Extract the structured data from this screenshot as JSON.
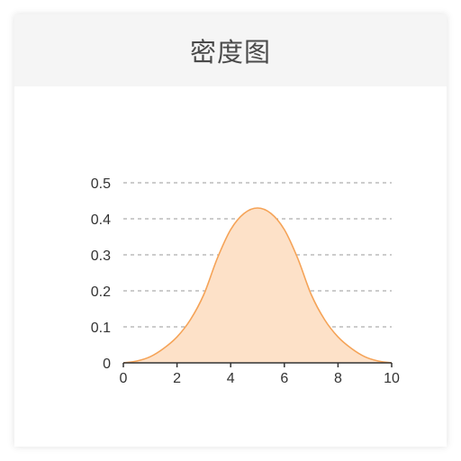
{
  "card": {
    "title": "密度图"
  },
  "chart_data": {
    "type": "area",
    "title": "",
    "xlabel": "",
    "ylabel": "",
    "xlim": [
      0,
      10
    ],
    "ylim": [
      0,
      0.5
    ],
    "grid": "horizontal-dashed",
    "x_ticks": [
      0,
      2,
      4,
      6,
      8,
      10
    ],
    "y_ticks": [
      0,
      0.1,
      0.2,
      0.3,
      0.4,
      0.5
    ],
    "y_tick_labels": [
      "0",
      "0.1",
      "0.2",
      "0.3",
      "0.4",
      "0.5"
    ],
    "series": [
      {
        "x": [
          0,
          0.5,
          1,
          1.5,
          2,
          2.5,
          3,
          3.5,
          4,
          4.5,
          5,
          5.5,
          6,
          6.5,
          7,
          7.5,
          8,
          8.5,
          9,
          9.5,
          10
        ],
        "values": [
          0.0,
          0.005,
          0.017,
          0.04,
          0.072,
          0.12,
          0.19,
          0.29,
          0.37,
          0.415,
          0.43,
          0.415,
          0.37,
          0.29,
          0.19,
          0.12,
          0.072,
          0.04,
          0.017,
          0.005,
          0.0
        ],
        "line_color": "#f5a357",
        "fill_color": "#fde1c8"
      }
    ]
  }
}
